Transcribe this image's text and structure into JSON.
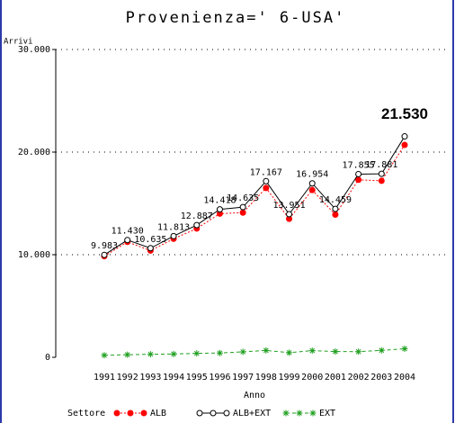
{
  "chart_data": {
    "type": "line",
    "title": "Provenienza=' 6-USA'",
    "y_label": "Arrivi",
    "x_label": "Anno",
    "legend_title": "Settore",
    "categories": [
      "1991",
      "1992",
      "1993",
      "1994",
      "1995",
      "1996",
      "1997",
      "1998",
      "1999",
      "2000",
      "2001",
      "2002",
      "2003",
      "2004"
    ],
    "series": [
      {
        "name": "ALB",
        "color": "#ff0000",
        "marker": "dot",
        "values": [
          9850,
          11250,
          10400,
          11550,
          12550,
          14000,
          14100,
          16500,
          13500,
          16300,
          13900,
          17300,
          17200,
          20700
        ]
      },
      {
        "name": "ALB+EXT",
        "color": "#000000",
        "marker": "circle",
        "values": [
          9983,
          11430,
          10635,
          11813,
          12887,
          14418,
          14635,
          17167,
          13951,
          16954,
          14459,
          17855,
          17881,
          21530
        ],
        "value_labels": [
          "9.983",
          "11.430",
          "10.635",
          "11.813",
          "12.887",
          "14.418",
          "14.635",
          "17.167",
          "13.951",
          "16.954",
          "14.459",
          "17.855",
          "17.881",
          "21.530"
        ]
      },
      {
        "name": "EXT",
        "color": "#22a022",
        "marker": "star",
        "values": [
          200,
          250,
          300,
          320,
          380,
          420,
          530,
          670,
          450,
          650,
          560,
          550,
          680,
          830
        ]
      }
    ],
    "ylim": [
      0,
      30000
    ],
    "yticks": [
      0,
      {
        "value": 10000,
        "label": "10.000"
      },
      {
        "value": 20000,
        "label": "20.000"
      },
      {
        "value": 30000,
        "label": "30.000"
      }
    ],
    "grid": true
  }
}
